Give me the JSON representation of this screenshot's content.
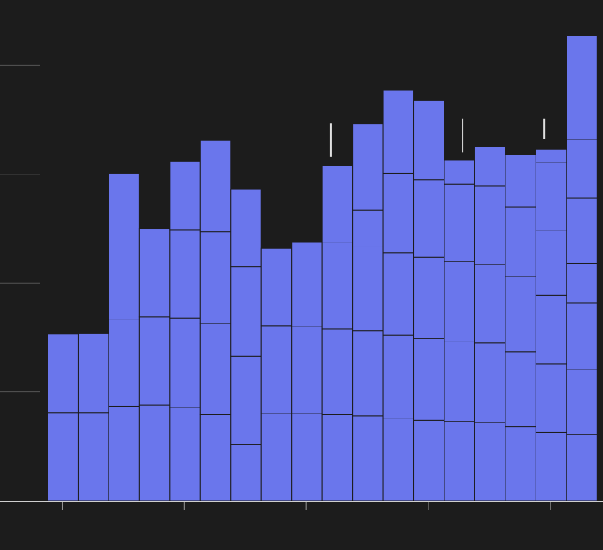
{
  "chart_data": {
    "type": "histogram",
    "bins": [
      -0.12,
      0.13,
      0.38,
      0.63,
      0.88,
      1.13,
      1.38,
      1.63,
      1.88,
      2.13,
      2.38,
      2.63,
      2.88,
      3.13,
      3.38,
      3.63,
      3.88,
      4.13,
      4.38
    ],
    "series": [
      {
        "color": "#6a76ec",
        "values": [
          0.81,
          0.81,
          0.87,
          0.88,
          0.86,
          0.79,
          0.52,
          0.8,
          0.8,
          0.79,
          0.78,
          0.76,
          0.74,
          0.73,
          0.72,
          0.68,
          0.63,
          0.61
        ]
      },
      {
        "color": "#6a76ec",
        "values": [
          0.72,
          0.73,
          0.8,
          0.81,
          0.82,
          0.84,
          0.81,
          0.81,
          0.8,
          0.79,
          0.78,
          0.76,
          0.75,
          0.73,
          0.73,
          0.69,
          0.63,
          0.6
        ]
      },
      {
        "color": "#6a76ec",
        "values": [
          null,
          null,
          1.34,
          0.81,
          0.81,
          0.84,
          0.82,
          0.71,
          0.78,
          0.79,
          0.78,
          0.76,
          0.75,
          0.74,
          0.72,
          0.69,
          0.63,
          0.61
        ]
      },
      {
        "color": "#6a76ec",
        "values": [
          null,
          null,
          null,
          null,
          0.63,
          0.84,
          0.71,
          null,
          null,
          0.71,
          0.33,
          0.73,
          0.71,
          0.71,
          0.72,
          0.64,
          0.59,
          0.36
        ]
      },
      {
        "color": "#6a76ec",
        "values": [
          null,
          null,
          null,
          null,
          null,
          null,
          null,
          null,
          null,
          null,
          0.79,
          0.76,
          0.73,
          0.22,
          0.36,
          0.48,
          0.63,
          0.6
        ]
      },
      {
        "color": "#6a76ec",
        "values": [
          null,
          null,
          null,
          null,
          null,
          null,
          null,
          null,
          null,
          null,
          null,
          null,
          null,
          null,
          null,
          null,
          0.12,
          0.54
        ]
      },
      {
        "color": "#6a76ec",
        "values": [
          null,
          null,
          null,
          null,
          null,
          null,
          null,
          null,
          null,
          null,
          null,
          null,
          null,
          null,
          null,
          null,
          null,
          0.95
        ]
      }
    ],
    "markers": [
      {
        "x": 2.2,
        "low": 3.16,
        "high": 3.47
      },
      {
        "x": 3.28,
        "low": 3.2,
        "high": 3.51
      },
      {
        "x": 3.95,
        "low": 3.32,
        "high": 3.51
      }
    ],
    "xlim": [
      -0.51,
      4.43
    ],
    "xticks": [
      0,
      1,
      2,
      3,
      4
    ],
    "ylim": [
      0,
      4.6
    ],
    "yticks": [
      1,
      2,
      3,
      4
    ]
  }
}
